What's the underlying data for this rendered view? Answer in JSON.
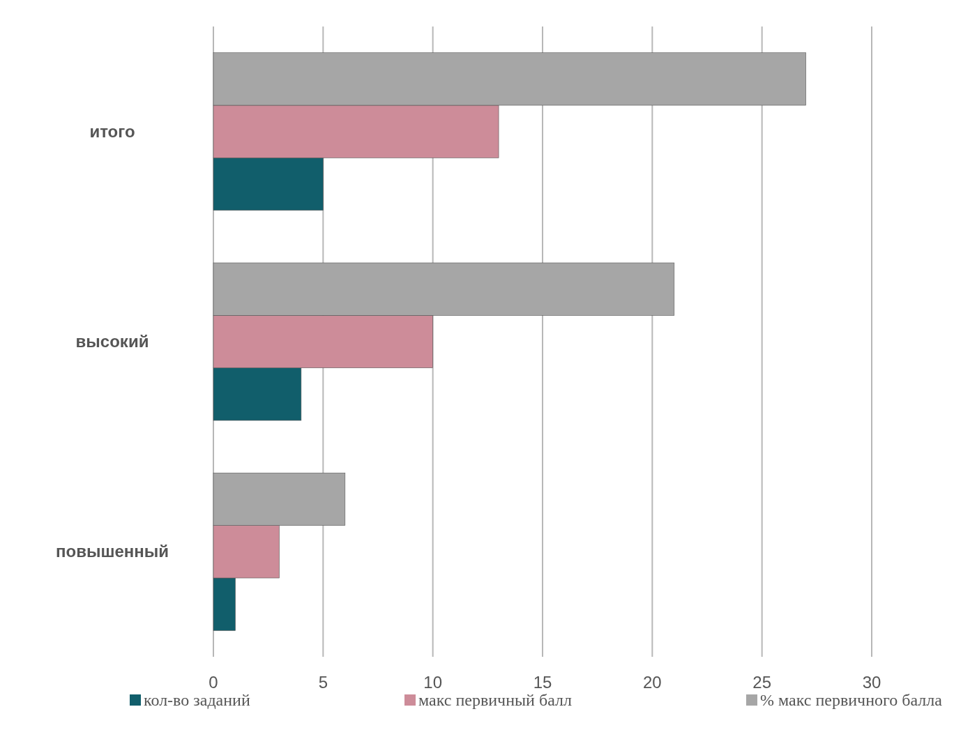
{
  "chart_data": {
    "type": "bar",
    "orientation": "horizontal",
    "categories": [
      "итого",
      "высокий",
      "повышенный"
    ],
    "series": [
      {
        "name": "кол-во заданий",
        "color": "#115e6b",
        "values": [
          5,
          4,
          1
        ]
      },
      {
        "name": "макс первичный балл",
        "color": "#cd8c99",
        "values": [
          13,
          10,
          3
        ]
      },
      {
        "name": "% макс первичного балла",
        "color": "#a6a6a6",
        "values": [
          27,
          21,
          6
        ]
      }
    ],
    "xlim": [
      0,
      30
    ],
    "xticks": [
      0,
      5,
      10,
      15,
      20,
      25,
      30
    ],
    "grid": "x",
    "legend": "bottom"
  }
}
